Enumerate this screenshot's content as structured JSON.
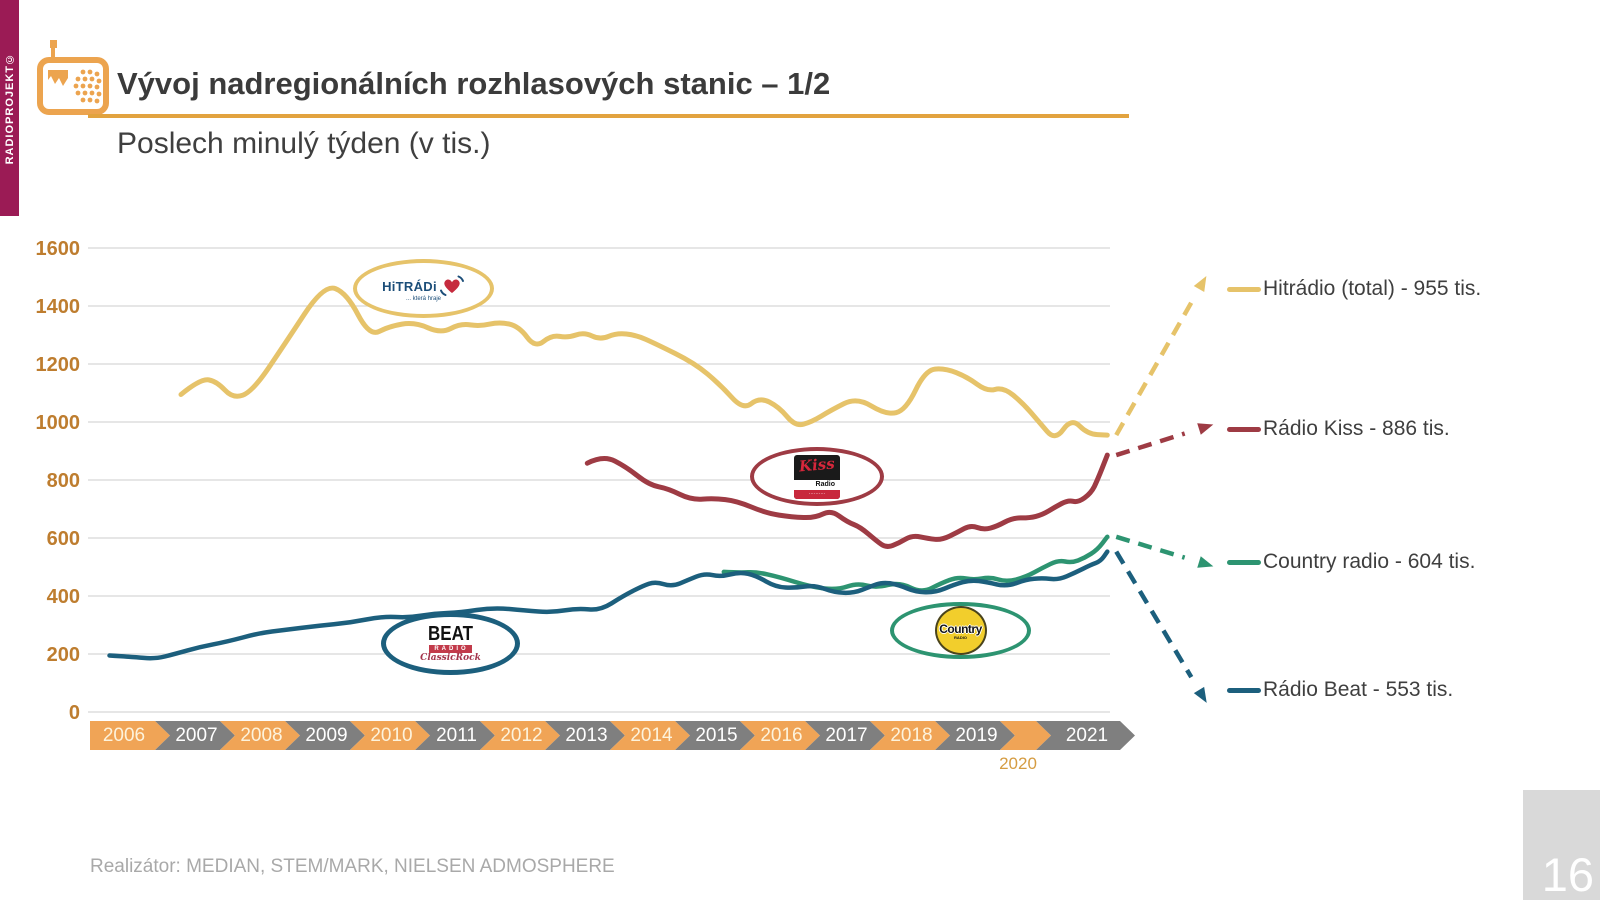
{
  "sidebar": {
    "text": "RADIOPROJEKT©"
  },
  "header": {
    "title": "Vývoj nadregionálních rozhlasových stanic – 1/2",
    "subtitle": "Poslech minulý týden (v tis.)"
  },
  "footer": {
    "source": "Realizátor: MEDIAN, STEM/MARK, NIELSEN ADMOSPHERE",
    "page": "16"
  },
  "colors": {
    "accent_orange": "#F0A456",
    "axis_label": "#BE7D2F",
    "rule": "#E2A33F",
    "brandbar": "#9B1B55",
    "gridline": "#D8D8D8",
    "chevron_gray": "#7F7F7F",
    "hitradio": "#E6C36A",
    "kiss": "#9E3B44",
    "country": "#2D9471",
    "beat": "#1C5F7D"
  },
  "logos": {
    "hitradio": {
      "name": "HiTRÁDi",
      "tagline": "... která hraje"
    },
    "kiss": {
      "name": "Kiss",
      "sub": "Radio",
      "tagline": "··········"
    },
    "country": {
      "name": "Country",
      "sub": "RADIO"
    },
    "beat": {
      "name": "BEAT",
      "sub": "RADIO",
      "script": "ClassicRock"
    }
  },
  "chart_data": {
    "type": "line",
    "title": "Poslech minulý týden (v tis.)",
    "xlabel": "",
    "ylabel": "",
    "ylim": [
      0,
      1600
    ],
    "yticks": [
      1600,
      1400,
      1200,
      1000,
      800,
      600,
      400,
      200,
      0
    ],
    "grid": "horizontal",
    "legend_position": "right",
    "x_years": [
      {
        "label": "2006",
        "accent": true
      },
      {
        "label": "2007",
        "accent": false
      },
      {
        "label": "2008",
        "accent": true
      },
      {
        "label": "2009",
        "accent": false
      },
      {
        "label": "2010",
        "accent": true
      },
      {
        "label": "2011",
        "accent": false
      },
      {
        "label": "2012",
        "accent": true
      },
      {
        "label": "2013",
        "accent": false
      },
      {
        "label": "2014",
        "accent": true
      },
      {
        "label": "2015",
        "accent": false
      },
      {
        "label": "2016",
        "accent": true
      },
      {
        "label": "2017",
        "accent": false
      },
      {
        "label": "2018",
        "accent": true
      },
      {
        "label": "2019",
        "accent": false
      },
      {
        "label": "",
        "accent": true,
        "narrow": true,
        "below_label": "2020"
      },
      {
        "label": "2021",
        "accent": false,
        "arrow_end": true
      }
    ],
    "series": [
      {
        "id": "hitradio",
        "name": "Hitrádio (total)",
        "legend_label": "Hitrádio (total) - 955 tis.",
        "color": "#E6C36A",
        "end_value": 955,
        "line_width": 5,
        "points": [
          [
            2006.9,
            1095
          ],
          [
            2007.2,
            1150
          ],
          [
            2007.45,
            1140
          ],
          [
            2007.7,
            1080
          ],
          [
            2008.0,
            1105
          ],
          [
            2008.5,
            1270
          ],
          [
            2009.1,
            1475
          ],
          [
            2009.45,
            1445
          ],
          [
            2009.8,
            1295
          ],
          [
            2010.1,
            1330
          ],
          [
            2010.5,
            1345
          ],
          [
            2010.9,
            1305
          ],
          [
            2011.2,
            1340
          ],
          [
            2011.5,
            1330
          ],
          [
            2011.8,
            1345
          ],
          [
            2012.1,
            1330
          ],
          [
            2012.35,
            1255
          ],
          [
            2012.6,
            1300
          ],
          [
            2012.85,
            1290
          ],
          [
            2013.1,
            1310
          ],
          [
            2013.35,
            1283
          ],
          [
            2013.6,
            1307
          ],
          [
            2013.9,
            1300
          ],
          [
            2014.2,
            1270
          ],
          [
            2014.8,
            1203
          ],
          [
            2015.2,
            1128
          ],
          [
            2015.55,
            1041
          ],
          [
            2015.8,
            1086
          ],
          [
            2016.1,
            1052
          ],
          [
            2016.35,
            985
          ],
          [
            2016.6,
            1000
          ],
          [
            2016.9,
            1041
          ],
          [
            2017.3,
            1086
          ],
          [
            2017.75,
            1024
          ],
          [
            2018.05,
            1040
          ],
          [
            2018.35,
            1179
          ],
          [
            2018.65,
            1186
          ],
          [
            2019.0,
            1155
          ],
          [
            2019.3,
            1105
          ],
          [
            2019.55,
            1120
          ],
          [
            2019.85,
            1066
          ],
          [
            2020.1,
            1000
          ],
          [
            2020.35,
            935
          ],
          [
            2020.6,
            1014
          ],
          [
            2020.85,
            958
          ],
          [
            2021.15,
            955
          ]
        ]
      },
      {
        "id": "kiss",
        "name": "Rádio Kiss",
        "legend_label": "Rádio Kiss - 886 tis.",
        "color": "#9E3B44",
        "end_value": 886,
        "line_width": 5,
        "points": [
          [
            2013.15,
            858
          ],
          [
            2013.4,
            886
          ],
          [
            2013.75,
            845
          ],
          [
            2014.1,
            783
          ],
          [
            2014.4,
            770
          ],
          [
            2014.75,
            731
          ],
          [
            2015.1,
            737
          ],
          [
            2015.45,
            728
          ],
          [
            2015.9,
            686
          ],
          [
            2016.3,
            672
          ],
          [
            2016.65,
            669
          ],
          [
            2016.9,
            697
          ],
          [
            2017.15,
            655
          ],
          [
            2017.35,
            638
          ],
          [
            2017.6,
            590
          ],
          [
            2017.75,
            566
          ],
          [
            2017.95,
            583
          ],
          [
            2018.15,
            610
          ],
          [
            2018.4,
            598
          ],
          [
            2018.6,
            593
          ],
          [
            2018.85,
            620
          ],
          [
            2019.05,
            645
          ],
          [
            2019.25,
            628
          ],
          [
            2019.45,
            640
          ],
          [
            2019.7,
            670
          ],
          [
            2019.95,
            669
          ],
          [
            2020.15,
            680
          ],
          [
            2020.35,
            707
          ],
          [
            2020.55,
            731
          ],
          [
            2020.7,
            722
          ],
          [
            2020.9,
            755
          ],
          [
            2021.0,
            800
          ],
          [
            2021.15,
            886
          ]
        ]
      },
      {
        "id": "country",
        "name": "Country radio",
        "legend_label": "Country radio - 604 tis.",
        "color": "#2D9471",
        "end_value": 604,
        "line_width": 4.5,
        "points": [
          [
            2015.25,
            483
          ],
          [
            2015.5,
            480
          ],
          [
            2015.75,
            483
          ],
          [
            2016.1,
            466
          ],
          [
            2016.6,
            431
          ],
          [
            2017.0,
            421
          ],
          [
            2017.3,
            445
          ],
          [
            2017.6,
            428
          ],
          [
            2017.95,
            448
          ],
          [
            2018.3,
            410
          ],
          [
            2018.6,
            445
          ],
          [
            2018.85,
            466
          ],
          [
            2019.1,
            455
          ],
          [
            2019.35,
            466
          ],
          [
            2019.6,
            448
          ],
          [
            2019.9,
            466
          ],
          [
            2020.15,
            497
          ],
          [
            2020.4,
            524
          ],
          [
            2020.6,
            514
          ],
          [
            2020.8,
            531
          ],
          [
            2021.0,
            560
          ],
          [
            2021.15,
            604
          ]
        ]
      },
      {
        "id": "beat",
        "name": "Rádio Beat",
        "legend_label": "Rádio Beat - 553 tis.",
        "color": "#1C5F7D",
        "end_value": 553,
        "line_width": 4.5,
        "points": [
          [
            2005.8,
            195
          ],
          [
            2006.15,
            190
          ],
          [
            2006.5,
            183
          ],
          [
            2006.8,
            200
          ],
          [
            2007.2,
            225
          ],
          [
            2007.6,
            242
          ],
          [
            2008.1,
            272
          ],
          [
            2008.5,
            283
          ],
          [
            2009.0,
            297
          ],
          [
            2009.5,
            308
          ],
          [
            2010.0,
            330
          ],
          [
            2010.4,
            325
          ],
          [
            2010.8,
            340
          ],
          [
            2011.2,
            343
          ],
          [
            2011.7,
            360
          ],
          [
            2012.2,
            350
          ],
          [
            2012.6,
            343
          ],
          [
            2013.0,
            358
          ],
          [
            2013.35,
            350
          ],
          [
            2013.7,
            400
          ],
          [
            2014.0,
            435
          ],
          [
            2014.2,
            450
          ],
          [
            2014.45,
            432
          ],
          [
            2014.7,
            455
          ],
          [
            2014.95,
            478
          ],
          [
            2015.2,
            466
          ],
          [
            2015.5,
            483
          ],
          [
            2015.75,
            470
          ],
          [
            2016.05,
            431
          ],
          [
            2016.35,
            428
          ],
          [
            2016.65,
            438
          ],
          [
            2016.95,
            412
          ],
          [
            2017.25,
            410
          ],
          [
            2017.5,
            432
          ],
          [
            2017.7,
            448
          ],
          [
            2017.95,
            438
          ],
          [
            2018.2,
            414
          ],
          [
            2018.5,
            412
          ],
          [
            2018.8,
            440
          ],
          [
            2019.05,
            455
          ],
          [
            2019.3,
            448
          ],
          [
            2019.6,
            432
          ],
          [
            2019.9,
            457
          ],
          [
            2020.15,
            462
          ],
          [
            2020.4,
            456
          ],
          [
            2020.65,
            480
          ],
          [
            2020.9,
            508
          ],
          [
            2021.05,
            520
          ],
          [
            2021.15,
            553
          ]
        ]
      }
    ]
  }
}
